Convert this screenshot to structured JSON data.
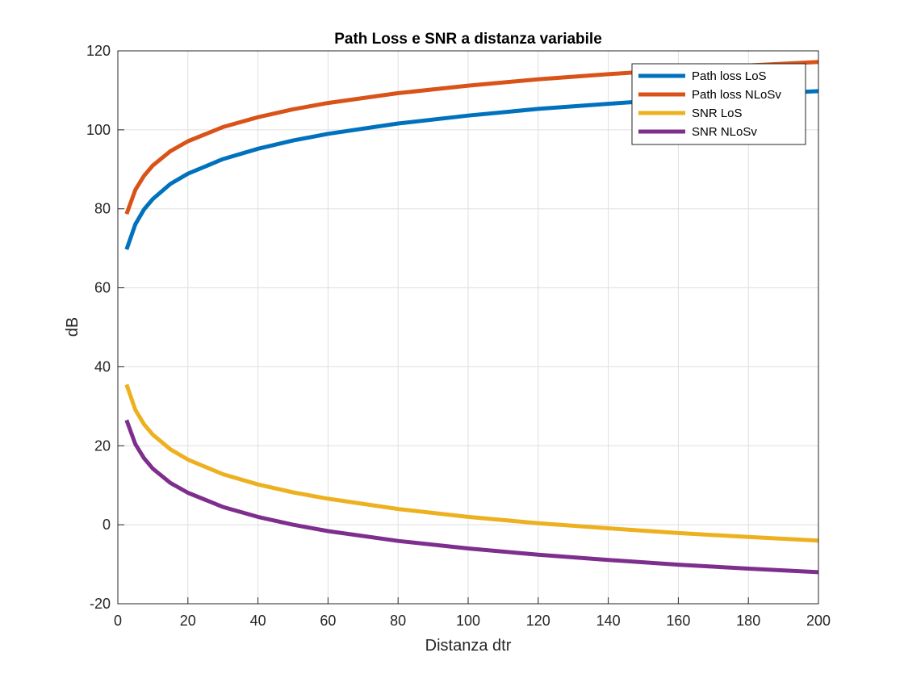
{
  "chart_data": {
    "type": "line",
    "title": "Path Loss e SNR a distanza variabile",
    "xlabel": "Distanza dtr",
    "ylabel": "dB",
    "xlim": [
      0,
      200
    ],
    "ylim": [
      -20,
      120
    ],
    "xticks": [
      0,
      20,
      40,
      60,
      80,
      100,
      120,
      140,
      160,
      180,
      200
    ],
    "yticks": [
      -20,
      0,
      20,
      40,
      60,
      80,
      100,
      120
    ],
    "grid": true,
    "legend_position": "top-right",
    "x": [
      2.5,
      5,
      7.5,
      10,
      15,
      20,
      30,
      40,
      50,
      60,
      80,
      100,
      120,
      140,
      160,
      180,
      200
    ],
    "series": [
      {
        "name": "Path loss LoS",
        "color": "#0072BD",
        "values": [
          69.7,
          76.1,
          79.9,
          82.5,
          86.3,
          88.9,
          92.6,
          95.2,
          97.3,
          99.0,
          101.6,
          103.6,
          105.3,
          106.6,
          107.8,
          108.9,
          109.8
        ]
      },
      {
        "name": "Path loss NLoSv",
        "color": "#D95319",
        "values": [
          78.7,
          84.8,
          88.4,
          91.0,
          94.6,
          97.1,
          100.7,
          103.2,
          105.2,
          106.8,
          109.3,
          111.2,
          112.8,
          114.1,
          115.3,
          116.3,
          117.2
        ]
      },
      {
        "name": "SNR LoS",
        "color": "#EDB120",
        "values": [
          35.5,
          29.1,
          25.4,
          22.8,
          19.1,
          16.5,
          12.8,
          10.2,
          8.2,
          6.6,
          4.0,
          2.0,
          0.4,
          -0.9,
          -2.1,
          -3.1,
          -4.0
        ]
      },
      {
        "name": "SNR NLoSv",
        "color": "#7E2F8E",
        "values": [
          26.5,
          20.4,
          16.8,
          14.2,
          10.6,
          8.1,
          4.5,
          2.0,
          0.0,
          -1.6,
          -4.1,
          -6.0,
          -7.6,
          -8.9,
          -10.1,
          -11.1,
          -12.0
        ]
      }
    ]
  }
}
